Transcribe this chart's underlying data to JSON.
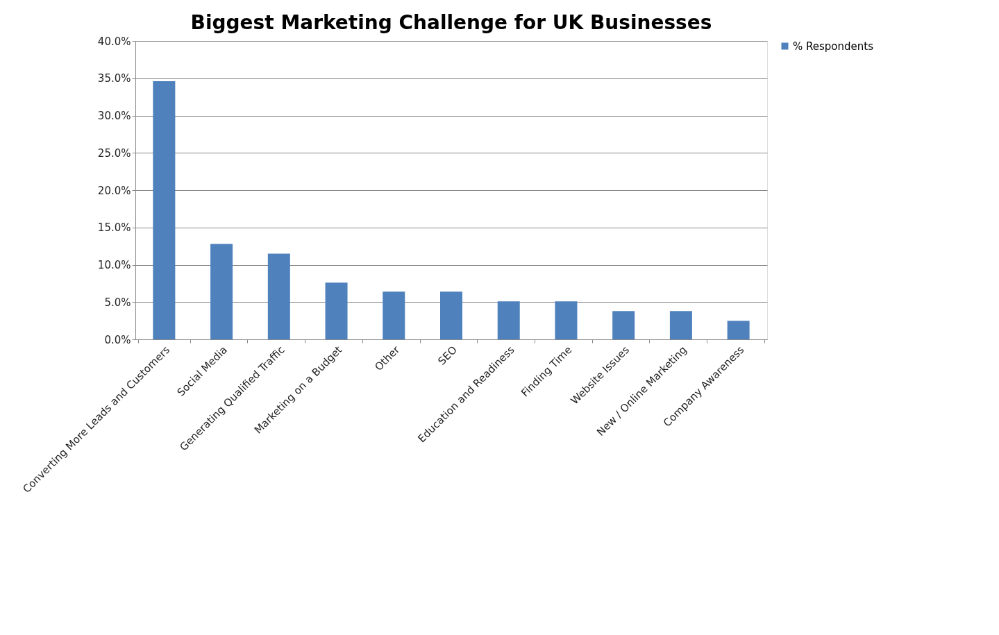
{
  "chart_data": {
    "type": "bar",
    "title": "Biggest Marketing Challenge for UK Businesses",
    "categories": [
      "Converting More Leads and Customers",
      "Social Media",
      "Generating Qualified Traffic",
      "Marketing on a Budget",
      "Other",
      "SEO",
      "Education and Readiness",
      "Finding Time",
      "Website Issues",
      "New / Online Marketing",
      "Company Awareness"
    ],
    "series": [
      {
        "name": "% Respondents",
        "color": "#4f81bd",
        "values": [
          34.6,
          12.8,
          11.5,
          7.6,
          6.4,
          6.4,
          5.1,
          5.1,
          3.8,
          3.8,
          2.5
        ]
      }
    ],
    "ylim": [
      0,
      40
    ],
    "yticks": [
      {
        "value": 0,
        "label": "0.0%"
      },
      {
        "value": 5,
        "label": "5.0%"
      },
      {
        "value": 10,
        "label": "10.0%"
      },
      {
        "value": 15,
        "label": "15.0%"
      },
      {
        "value": 20,
        "label": "20.0%"
      },
      {
        "value": 25,
        "label": "25.0%"
      },
      {
        "value": 30,
        "label": "30.0%"
      },
      {
        "value": 35,
        "label": "35.0%"
      },
      {
        "value": 40,
        "label": "40.0%"
      }
    ],
    "grid": "y",
    "legend": "right"
  }
}
